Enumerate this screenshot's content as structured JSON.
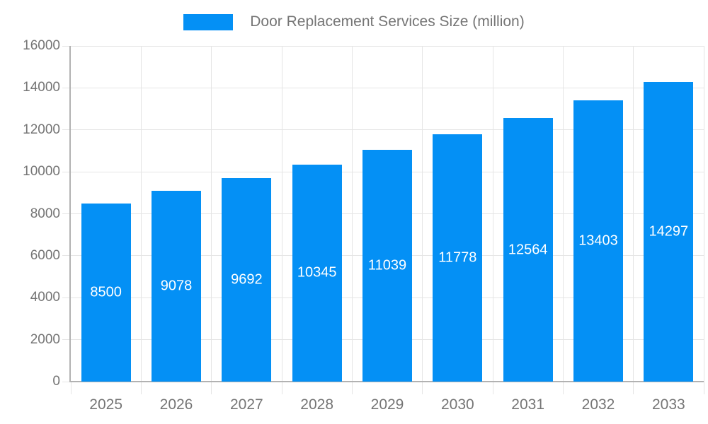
{
  "legend": {
    "label": "Door Replacement Services Size (million)"
  },
  "chart_data": {
    "type": "bar",
    "title": "Door Replacement Services Size (million)",
    "categories": [
      "2025",
      "2026",
      "2027",
      "2028",
      "2029",
      "2030",
      "2031",
      "2032",
      "2033"
    ],
    "values": [
      8500,
      9078,
      9692,
      10345,
      11039,
      11778,
      12564,
      13403,
      14297
    ],
    "series": [
      {
        "name": "Door Replacement Services Size (million)",
        "values": [
          8500,
          9078,
          9692,
          10345,
          11039,
          11778,
          12564,
          13403,
          14297
        ]
      }
    ],
    "xlabel": "",
    "ylabel": "",
    "ylim": [
      0,
      16000
    ],
    "ytick_step": 2000,
    "yticks": [
      0,
      2000,
      4000,
      6000,
      8000,
      10000,
      12000,
      14000,
      16000
    ],
    "grid": true,
    "legend_position": "top",
    "value_labels": "inside-center-white",
    "colors": {
      "bar": "#0490f5",
      "bar_label": "#ffffff",
      "axis_text": "#757575",
      "gridline": "#e5e5e5",
      "axis_line": "#b2b2b2",
      "background": "#ffffff"
    }
  }
}
